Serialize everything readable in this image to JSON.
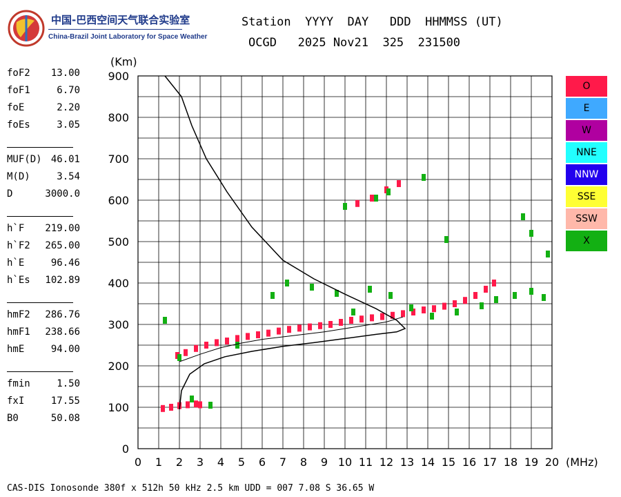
{
  "logo": {
    "cn": "中国-巴西空间天气联合实验室",
    "en": "China-Brazil Joint Laboratory for Space Weather"
  },
  "header": {
    "line1": "Station  YYYY  DAY   DDD  HHMMSS (UT)",
    "line2": "OCGD   2025 Nov21  325  231500"
  },
  "params": [
    {
      "name": "foF2",
      "value": "13.00"
    },
    {
      "name": "foF1",
      "value": "6.70"
    },
    {
      "name": "foE",
      "value": "2.20"
    },
    {
      "name": "foEs",
      "value": "3.05"
    },
    {
      "sep": true
    },
    {
      "name": "MUF(D)",
      "value": "46.01"
    },
    {
      "name": "M(D)",
      "value": "3.54"
    },
    {
      "name": "D",
      "value": "3000.0"
    },
    {
      "sep": true
    },
    {
      "name": "h`F",
      "value": "219.00"
    },
    {
      "name": "h`F2",
      "value": "265.00"
    },
    {
      "name": "h`E",
      "value": "96.46"
    },
    {
      "name": "h`Es",
      "value": "102.89"
    },
    {
      "sep": true
    },
    {
      "name": "hmF2",
      "value": "286.76"
    },
    {
      "name": "hmF1",
      "value": "238.66"
    },
    {
      "name": "hmE",
      "value": "94.00"
    },
    {
      "sep": true
    },
    {
      "name": "fmin",
      "value": "1.50"
    },
    {
      "name": "fxI",
      "value": "17.55"
    },
    {
      "name": "B0",
      "value": "50.08"
    }
  ],
  "legend": [
    {
      "label": "O",
      "color": "#ff1a4a"
    },
    {
      "label": "E",
      "color": "#3fa9ff"
    },
    {
      "label": "W",
      "color": "#b000a0"
    },
    {
      "label": "NNE",
      "color": "#22ffff"
    },
    {
      "label": "NNW",
      "color": "#2200ee"
    },
    {
      "label": "SSE",
      "color": "#ffff33"
    },
    {
      "label": "SSW",
      "color": "#ffb8aa"
    },
    {
      "label": "X",
      "color": "#13b013"
    }
  ],
  "footer": "CAS-DIS Ionosonde 380f x 512h 50 kHz 2.5 km UDD = 007 7.08 S 36.65 W",
  "chart_data": {
    "type": "scatter",
    "xlabel": "(MHz)",
    "ylabel": "(Km)",
    "xlim": [
      0,
      20
    ],
    "ylim": [
      0,
      900
    ],
    "xticks": [
      0,
      1,
      2,
      3,
      4,
      5,
      6,
      7,
      8,
      9,
      10,
      11,
      12,
      13,
      14,
      15,
      16,
      17,
      18,
      19,
      20
    ],
    "yticks": [
      0,
      100,
      200,
      300,
      400,
      500,
      600,
      700,
      800,
      900
    ],
    "grid": true,
    "series": [
      {
        "name": "O",
        "color": "#ff1a4a",
        "kind": "echo",
        "points": [
          [
            1.2,
            97
          ],
          [
            1.6,
            100
          ],
          [
            2.0,
            104
          ],
          [
            2.4,
            106
          ],
          [
            2.8,
            108
          ],
          [
            3.0,
            106
          ],
          [
            1.9,
            225
          ],
          [
            2.3,
            232
          ],
          [
            2.8,
            242
          ],
          [
            3.3,
            250
          ],
          [
            3.8,
            256
          ],
          [
            4.3,
            260
          ],
          [
            4.8,
            266
          ],
          [
            5.3,
            271
          ],
          [
            5.8,
            275
          ],
          [
            6.3,
            279
          ],
          [
            6.8,
            284
          ],
          [
            7.3,
            288
          ],
          [
            7.8,
            291
          ],
          [
            8.3,
            294
          ],
          [
            8.8,
            297
          ],
          [
            9.3,
            300
          ],
          [
            9.8,
            305
          ],
          [
            10.3,
            310
          ],
          [
            10.8,
            313
          ],
          [
            11.3,
            316
          ],
          [
            11.8,
            319
          ],
          [
            12.3,
            322
          ],
          [
            12.8,
            326
          ],
          [
            13.3,
            330
          ],
          [
            13.8,
            335
          ],
          [
            14.3,
            338
          ],
          [
            14.8,
            344
          ],
          [
            15.3,
            350
          ],
          [
            15.8,
            358
          ],
          [
            16.3,
            370
          ],
          [
            16.8,
            385
          ],
          [
            17.2,
            400
          ],
          [
            10.6,
            592
          ],
          [
            11.3,
            605
          ],
          [
            12.0,
            625
          ],
          [
            12.6,
            640
          ]
        ]
      },
      {
        "name": "X",
        "color": "#13b013",
        "kind": "echo",
        "points": [
          [
            1.3,
            310
          ],
          [
            2.0,
            220
          ],
          [
            2.6,
            120
          ],
          [
            3.5,
            105
          ],
          [
            4.8,
            250
          ],
          [
            6.5,
            370
          ],
          [
            7.2,
            400
          ],
          [
            8.4,
            390
          ],
          [
            9.6,
            375
          ],
          [
            10.4,
            330
          ],
          [
            11.2,
            385
          ],
          [
            12.2,
            370
          ],
          [
            13.2,
            340
          ],
          [
            14.2,
            320
          ],
          [
            15.4,
            330
          ],
          [
            16.6,
            345
          ],
          [
            17.3,
            360
          ],
          [
            18.2,
            370
          ],
          [
            19.0,
            380
          ],
          [
            19.6,
            365
          ],
          [
            19.8,
            470
          ],
          [
            19.0,
            520
          ],
          [
            18.6,
            560
          ],
          [
            14.9,
            505
          ],
          [
            13.8,
            655
          ],
          [
            10.0,
            585
          ],
          [
            11.5,
            605
          ],
          [
            12.1,
            620
          ]
        ]
      }
    ],
    "profile": {
      "name": "profile",
      "points": [
        [
          2.0,
          95
        ],
        [
          2.1,
          140
        ],
        [
          2.5,
          180
        ],
        [
          3.2,
          205
        ],
        [
          4.2,
          222
        ],
        [
          5.5,
          235
        ],
        [
          7.0,
          247
        ],
        [
          8.5,
          256
        ],
        [
          10.0,
          266
        ],
        [
          11.5,
          276
        ],
        [
          12.5,
          282
        ],
        [
          12.9,
          290
        ],
        [
          12.5,
          310
        ],
        [
          11.5,
          338
        ],
        [
          10.0,
          373
        ],
        [
          8.5,
          410
        ],
        [
          7.0,
          455
        ],
        [
          5.5,
          535
        ],
        [
          4.3,
          620
        ],
        [
          3.3,
          700
        ],
        [
          2.6,
          780
        ],
        [
          2.1,
          850
        ],
        [
          1.3,
          900
        ]
      ]
    },
    "trace": {
      "name": "trace",
      "points": [
        [
          2.0,
          210
        ],
        [
          3.0,
          228
        ],
        [
          4.0,
          244
        ],
        [
          5.0,
          255
        ],
        [
          6.0,
          264
        ],
        [
          7.0,
          270
        ],
        [
          8.0,
          276
        ],
        [
          9.0,
          282
        ],
        [
          10.0,
          290
        ],
        [
          11.0,
          298
        ],
        [
          12.0,
          306
        ],
        [
          12.8,
          318
        ]
      ]
    }
  }
}
